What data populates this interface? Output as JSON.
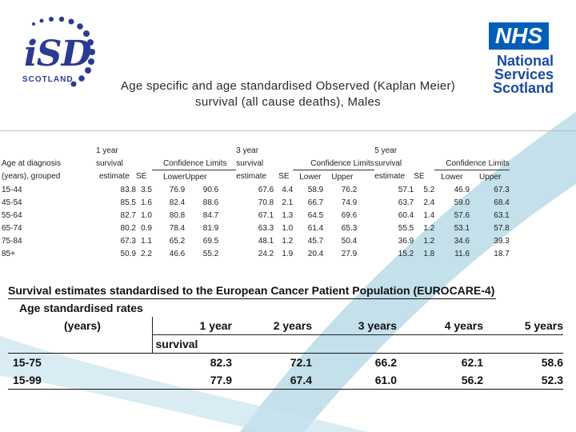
{
  "logos": {
    "isd_main": "iSD",
    "isd_sub": "SCOTLAND",
    "nhs_box": "NHS",
    "nhs_line1": "National",
    "nhs_line2": "Services",
    "nhs_line3": "Scotland"
  },
  "title": {
    "line1": "Age specific and age standardised Observed (Kaplan Meier)",
    "line2": "survival (all cause deaths), Males"
  },
  "colors": {
    "isd_blue": "#2b3b91",
    "nhs_blue": "#005eb8",
    "swoosh": "#b9dbe8"
  },
  "age_specific_table": {
    "header_row1": [
      "Age at diagnosis",
      "1 year",
      "3 year",
      "5 year"
    ],
    "header_row2": [
      "(years), grouped",
      "survival",
      "Confidence Limits",
      "survival",
      "Confidence Limits",
      "survival",
      "Confidence Limits"
    ],
    "header_row3": [
      "estimate",
      "SE",
      "Lower",
      "Upper",
      "estimate",
      "SE",
      "Lower",
      "Upper",
      "estimate",
      "SE",
      "Lower",
      "Upper"
    ],
    "rows": [
      {
        "age": "15-44",
        "values": [
          "83.8",
          "3.5",
          "76.9",
          "90.6",
          "67.6",
          "4.4",
          "58.9",
          "76.2",
          "57.1",
          "5.2",
          "46.9",
          "67.3"
        ]
      },
      {
        "age": "45-54",
        "values": [
          "85.5",
          "1.6",
          "82.4",
          "88.6",
          "70.8",
          "2.1",
          "66.7",
          "74.9",
          "63.7",
          "2.4",
          "59.0",
          "68.4"
        ]
      },
      {
        "age": "55-64",
        "values": [
          "82.7",
          "1.0",
          "80.8",
          "84.7",
          "67.1",
          "1.3",
          "64.5",
          "69.6",
          "60.4",
          "1.4",
          "57.6",
          "63.1"
        ]
      },
      {
        "age": "65-74",
        "values": [
          "80.2",
          "0.9",
          "78.4",
          "81.9",
          "63.3",
          "1.0",
          "61.4",
          "65.3",
          "55.5",
          "1.2",
          "53.1",
          "57.8"
        ]
      },
      {
        "age": "75-84",
        "values": [
          "67.3",
          "1.1",
          "65.2",
          "69.5",
          "48.1",
          "1.2",
          "45.7",
          "50.4",
          "36.9",
          "1.2",
          "34.6",
          "39.3"
        ]
      },
      {
        "age": "85+",
        "values": [
          "50.9",
          "2.2",
          "46.6",
          "55.2",
          "24.2",
          "1.9",
          "20.4",
          "27.9",
          "15.2",
          "1.8",
          "11.6",
          "18.7"
        ]
      }
    ]
  },
  "standardised_table": {
    "heading": "Survival estimates standardised to the European Cancer Patient Population (EUROCARE-4)",
    "label_line1": "Age standardised rates",
    "label_line2": "(years)",
    "columns": [
      "1 year",
      "2 years",
      "3 years",
      "4 years",
      "5 years"
    ],
    "sub_label": "survival",
    "rows": [
      {
        "range": "15-75",
        "values": [
          "82.3",
          "72.1",
          "66.2",
          "62.1",
          "58.6"
        ]
      },
      {
        "range": "15-99",
        "values": [
          "77.9",
          "67.4",
          "61.0",
          "56.2",
          "52.3"
        ]
      }
    ]
  }
}
